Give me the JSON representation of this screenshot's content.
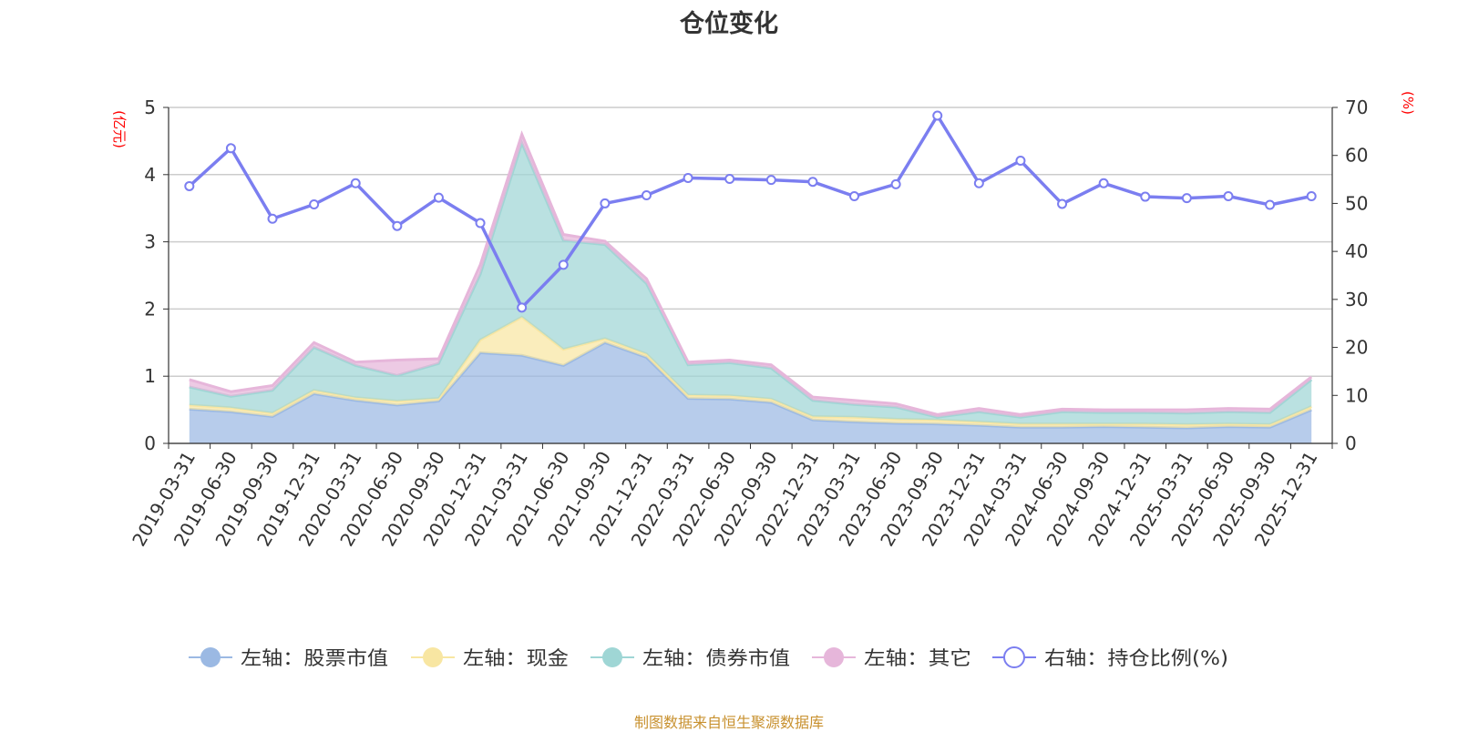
{
  "title": "仓位变化",
  "source": "制图数据来自恒生聚源数据库",
  "chart_data": {
    "type": "area",
    "title": "仓位变化",
    "left_axis": {
      "unit": "(亿元)",
      "range": [
        0,
        5
      ],
      "ticks": [
        0,
        1,
        2,
        3,
        4,
        5
      ]
    },
    "right_axis": {
      "unit": "(%)",
      "range": [
        0,
        70
      ],
      "ticks": [
        0,
        10,
        20,
        30,
        40,
        50,
        60,
        70
      ]
    },
    "categories": [
      "2019-03-31",
      "2019-06-30",
      "2019-09-30",
      "2019-12-31",
      "2020-03-31",
      "2020-06-30",
      "2020-09-30",
      "2020-12-31",
      "2021-03-31",
      "2021-06-30",
      "2021-09-30",
      "2021-12-31",
      "2022-03-31",
      "2022-06-30",
      "2022-09-30",
      "2022-12-31",
      "2023-03-31",
      "2023-06-30",
      "2023-09-30",
      "2023-12-31",
      "2024-03-31",
      "2024-06-30",
      "2024-09-30",
      "2024-12-31",
      "2025-03-31",
      "2025-06-30",
      "2025-09-30",
      "2025-12-31"
    ],
    "stacked": true,
    "series": [
      {
        "name": "左轴：股票市值",
        "axis": "left",
        "color": "#9bb9e3",
        "values": [
          0.51,
          0.47,
          0.4,
          0.74,
          0.64,
          0.57,
          0.63,
          1.35,
          1.31,
          1.16,
          1.5,
          1.28,
          0.67,
          0.66,
          0.61,
          0.35,
          0.32,
          0.3,
          0.29,
          0.27,
          0.24,
          0.24,
          0.25,
          0.24,
          0.23,
          0.25,
          0.24,
          0.5
        ]
      },
      {
        "name": "左轴：现金",
        "axis": "left",
        "color": "#f8e6a2",
        "values": [
          0.06,
          0.06,
          0.05,
          0.05,
          0.04,
          0.06,
          0.04,
          0.19,
          0.57,
          0.24,
          0.06,
          0.05,
          0.05,
          0.05,
          0.05,
          0.05,
          0.07,
          0.06,
          0.06,
          0.05,
          0.05,
          0.05,
          0.04,
          0.05,
          0.05,
          0.04,
          0.04,
          0.05
        ]
      },
      {
        "name": "左轴：债券市值",
        "axis": "left",
        "color": "#9fd6d5",
        "values": [
          0.27,
          0.17,
          0.34,
          0.64,
          0.48,
          0.38,
          0.52,
          0.98,
          2.59,
          1.62,
          1.4,
          1.05,
          0.45,
          0.49,
          0.46,
          0.24,
          0.19,
          0.18,
          0.04,
          0.15,
          0.1,
          0.18,
          0.17,
          0.17,
          0.17,
          0.18,
          0.18,
          0.4
        ]
      },
      {
        "name": "左轴：其它",
        "axis": "left",
        "color": "#e6b6da",
        "values": [
          0.11,
          0.07,
          0.07,
          0.07,
          0.05,
          0.23,
          0.07,
          0.14,
          0.13,
          0.09,
          0.05,
          0.07,
          0.04,
          0.04,
          0.05,
          0.05,
          0.06,
          0.05,
          0.04,
          0.05,
          0.04,
          0.04,
          0.04,
          0.04,
          0.05,
          0.05,
          0.05,
          0.04
        ]
      },
      {
        "name": "右轴：持仓比例(%)",
        "axis": "right",
        "type": "line",
        "color": "#7b7ef0",
        "values": [
          53.6,
          61.5,
          46.8,
          49.8,
          54.2,
          45.3,
          51.2,
          45.9,
          28.3,
          37.2,
          50.0,
          51.7,
          55.3,
          55.1,
          54.9,
          54.5,
          51.5,
          54.0,
          68.3,
          54.2,
          58.9,
          49.9,
          54.2,
          51.4,
          51.1,
          51.5,
          49.7,
          51.5
        ]
      }
    ]
  }
}
